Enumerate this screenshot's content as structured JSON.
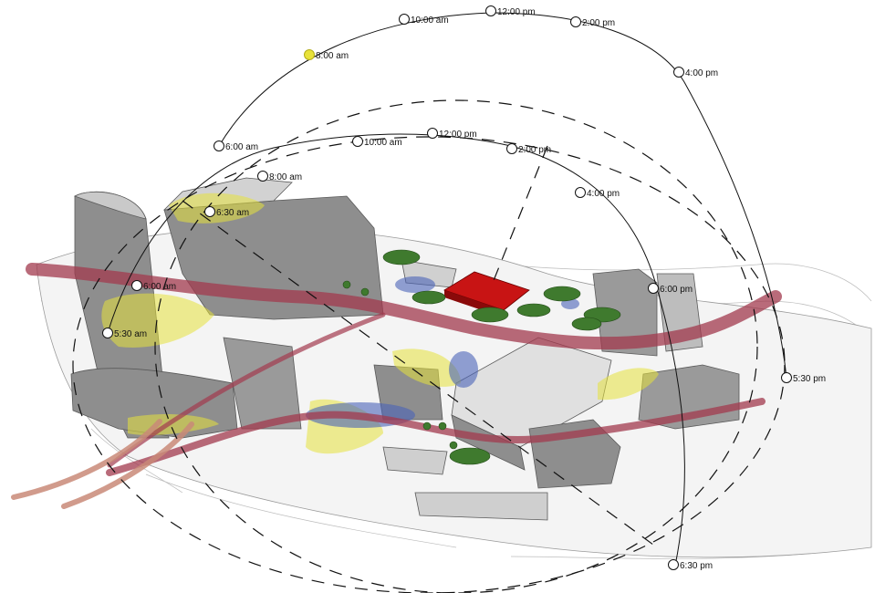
{
  "summer_path": {
    "labels": [
      "6:00 am",
      "8:00 am",
      "10:00 am",
      "12:00 pm",
      "2:00 pm",
      "4:00 pm",
      "5:30 pm"
    ],
    "highlight_index": 1,
    "highlight_color": "#e8e23a"
  },
  "equinox_path": {
    "labels": [
      "5:30 am",
      "6:00 am",
      "6:30 am",
      "8:00 am",
      "10:00 am",
      "12:00 pm",
      "2:00 pm",
      "4:00 pm",
      "6:00 pm",
      "6:30 pm"
    ]
  },
  "colors": {
    "building": "#8e8e8e",
    "building_light": "#c9c9c9",
    "sun_zone": "#e6e23c",
    "shade_zone": "#4a62b8",
    "wind_flow": "#a23a4e",
    "wind_flow_light": "#c98a78",
    "focus_building": "#c81414",
    "tree": "#3f7a2e"
  }
}
